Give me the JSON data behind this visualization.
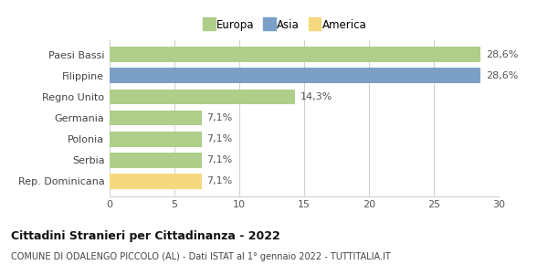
{
  "categories": [
    "Rep. Dominicana",
    "Serbia",
    "Polonia",
    "Germania",
    "Regno Unito",
    "Filippine",
    "Paesi Bassi"
  ],
  "values": [
    7.1,
    7.1,
    7.1,
    7.1,
    14.3,
    28.6,
    28.6
  ],
  "bar_colors": [
    "#f5d97e",
    "#aece8a",
    "#aece8a",
    "#aece8a",
    "#aece8a",
    "#7b9fc7",
    "#aece8a"
  ],
  "labels": [
    "7,1%",
    "7,1%",
    "7,1%",
    "7,1%",
    "14,3%",
    "28,6%",
    "28,6%"
  ],
  "legend": [
    {
      "label": "Europa",
      "color": "#aece8a"
    },
    {
      "label": "Asia",
      "color": "#7b9fc7"
    },
    {
      "label": "America",
      "color": "#f5d97e"
    }
  ],
  "title": "Cittadini Stranieri per Cittadinanza - 2022",
  "subtitle": "COMUNE DI ODALENGO PICCOLO (AL) - Dati ISTAT al 1° gennaio 2022 - TUTTITALIA.IT",
  "xlim": [
    0,
    30
  ],
  "xticks": [
    0,
    5,
    10,
    15,
    20,
    25,
    30
  ],
  "background_color": "#ffffff",
  "grid_color": "#d0d0d0"
}
